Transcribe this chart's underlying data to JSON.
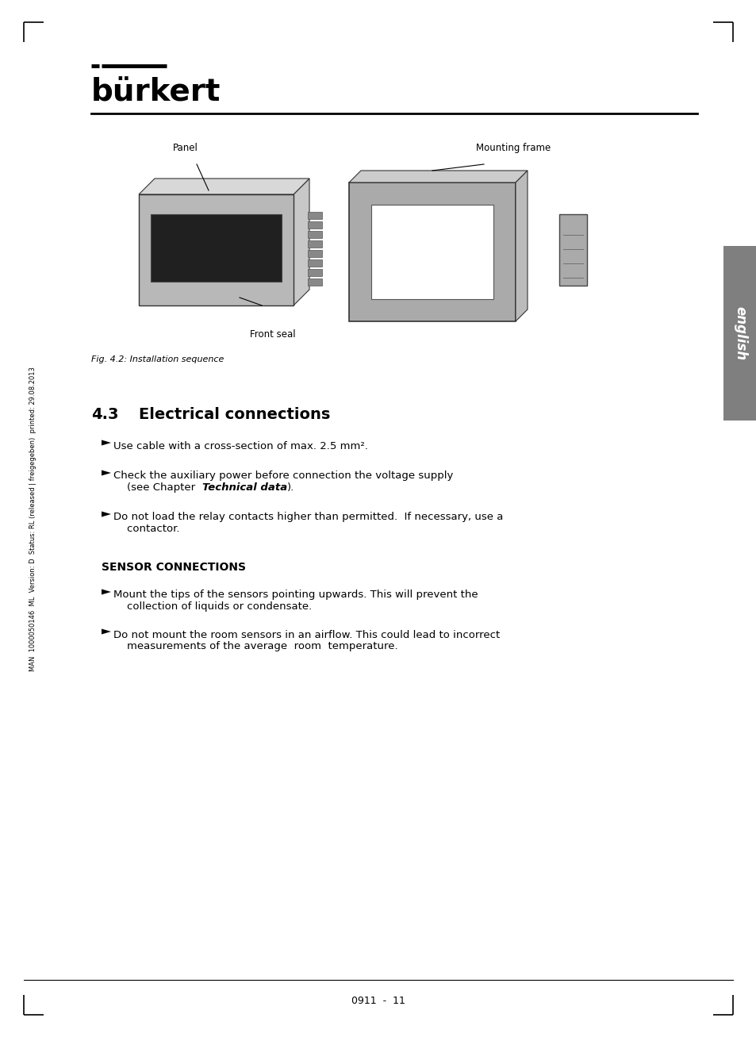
{
  "page_bg": "#ffffff",
  "text_color": "#000000",
  "logo_text": "bürkert",
  "section_number": "4.3",
  "section_title": "Electrical connections",
  "fig_caption": "Fig. 4.2: Installation sequence",
  "bullets": [
    "Use cable with a cross-section of max. 2.5 mm².",
    "Check the auxiliary power before connection the voltage supply\n    (see Chapter  Technical data).",
    "Do not load the relay contacts higher than permitted.  If necessary, use a\n    contactor."
  ],
  "bullet_bold_parts": [
    "",
    "Technical data",
    ""
  ],
  "sensor_title": "SENSOR CONNECTIONS",
  "sensor_bullets": [
    "Mount the tips of the sensors pointing upwards. This will prevent the\n    collection of liquids or condensate.",
    "Do not mount the room sensors in an airflow. This could lead to incorrect\n    measurements of the average  room  temperature."
  ],
  "side_text": "MAN  1000050146  ML  Version: D  Status: RL (released | freigegeben)  printed: 29.08.2013",
  "right_tab_text": "english",
  "right_tab_bg": "#7f7f7f",
  "right_tab_text_color": "#ffffff",
  "footer_text": "0911  -  11",
  "diagram_labels": [
    "Panel",
    "Mounting frame",
    "Front seal"
  ],
  "bracket_size": 25,
  "bracket_lw": 1.2,
  "logo_fontsize": 28,
  "section_fontsize": 14,
  "body_fontsize": 9.5,
  "caption_fontsize": 8,
  "side_fontsize": 6,
  "footer_fontsize": 9
}
